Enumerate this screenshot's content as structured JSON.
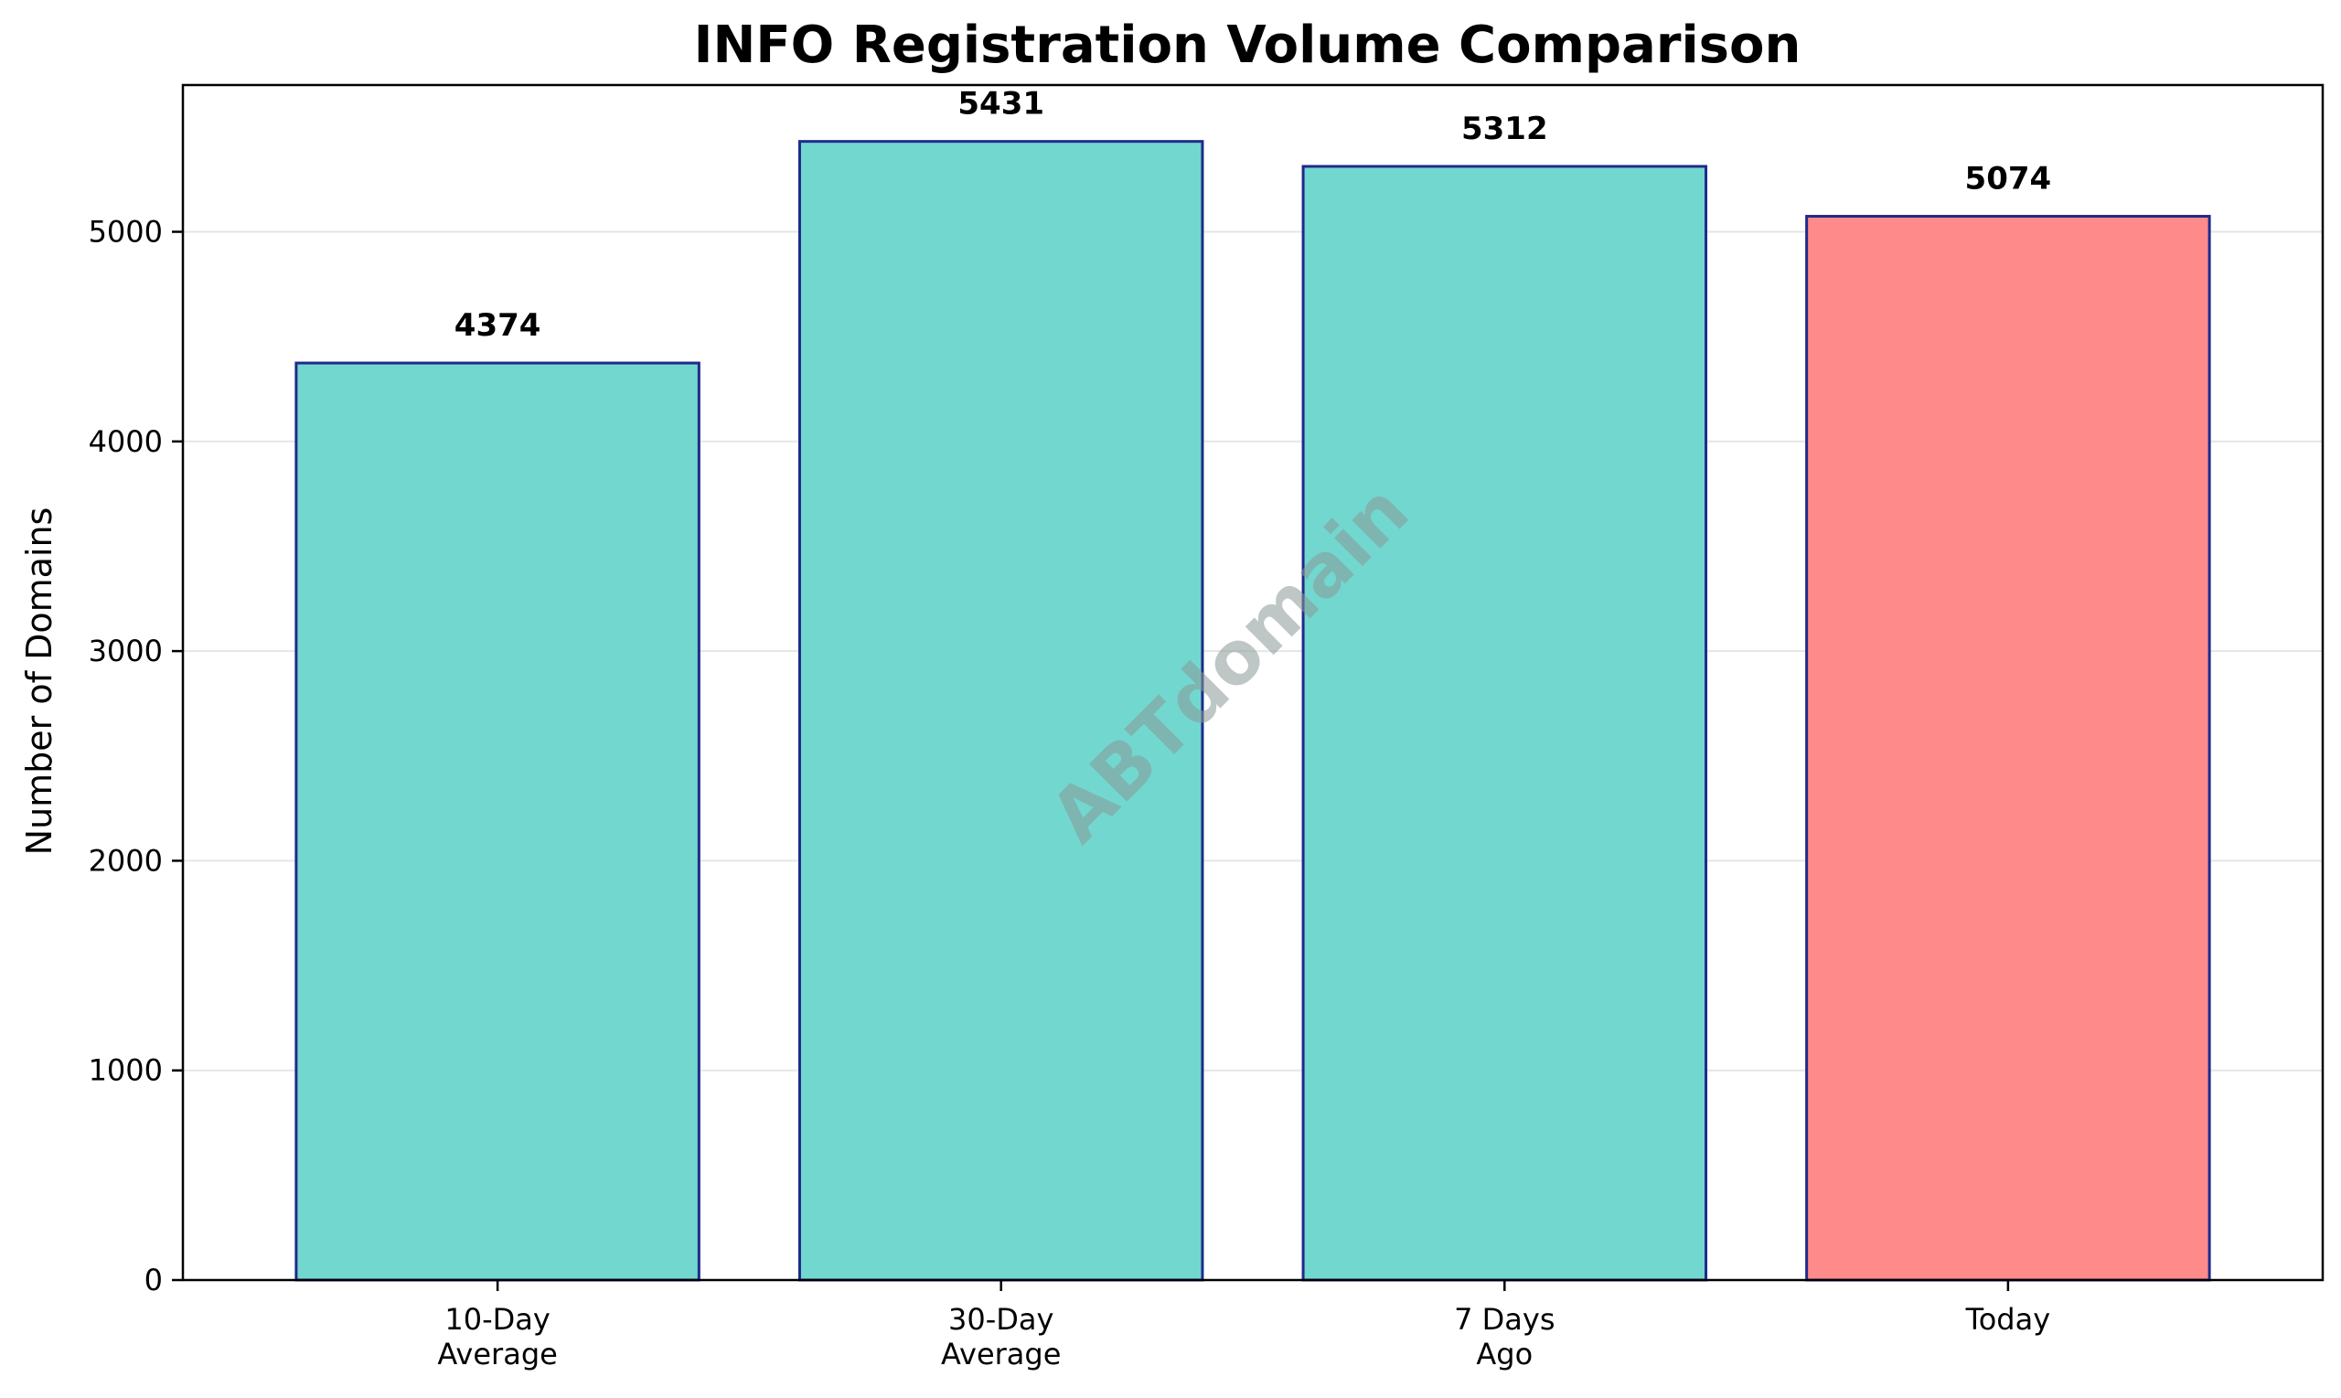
{
  "chart_data": {
    "type": "bar",
    "title": "INFO Registration Volume Comparison",
    "xlabel": "",
    "ylabel": "Number of Domains",
    "categories": [
      [
        "10-Day",
        "Average"
      ],
      [
        "30-Day",
        "Average"
      ],
      [
        "7 Days",
        "Ago"
      ],
      [
        "Today"
      ]
    ],
    "values": [
      4374,
      5431,
      5312,
      5074
    ],
    "value_labels": [
      "4374",
      "5431",
      "5312",
      "5074"
    ],
    "ylim": [
      0,
      5700
    ],
    "yticks": [
      0,
      1000,
      2000,
      3000,
      4000,
      5000
    ],
    "grid": "horizontal",
    "colors": {
      "bar": "#72d7cf",
      "highlight": "#ff8a8a",
      "edge": "#1f2a8a",
      "grid": "#e6e6e6"
    },
    "highlight_index": 3
  },
  "watermark": "ABTdomain"
}
